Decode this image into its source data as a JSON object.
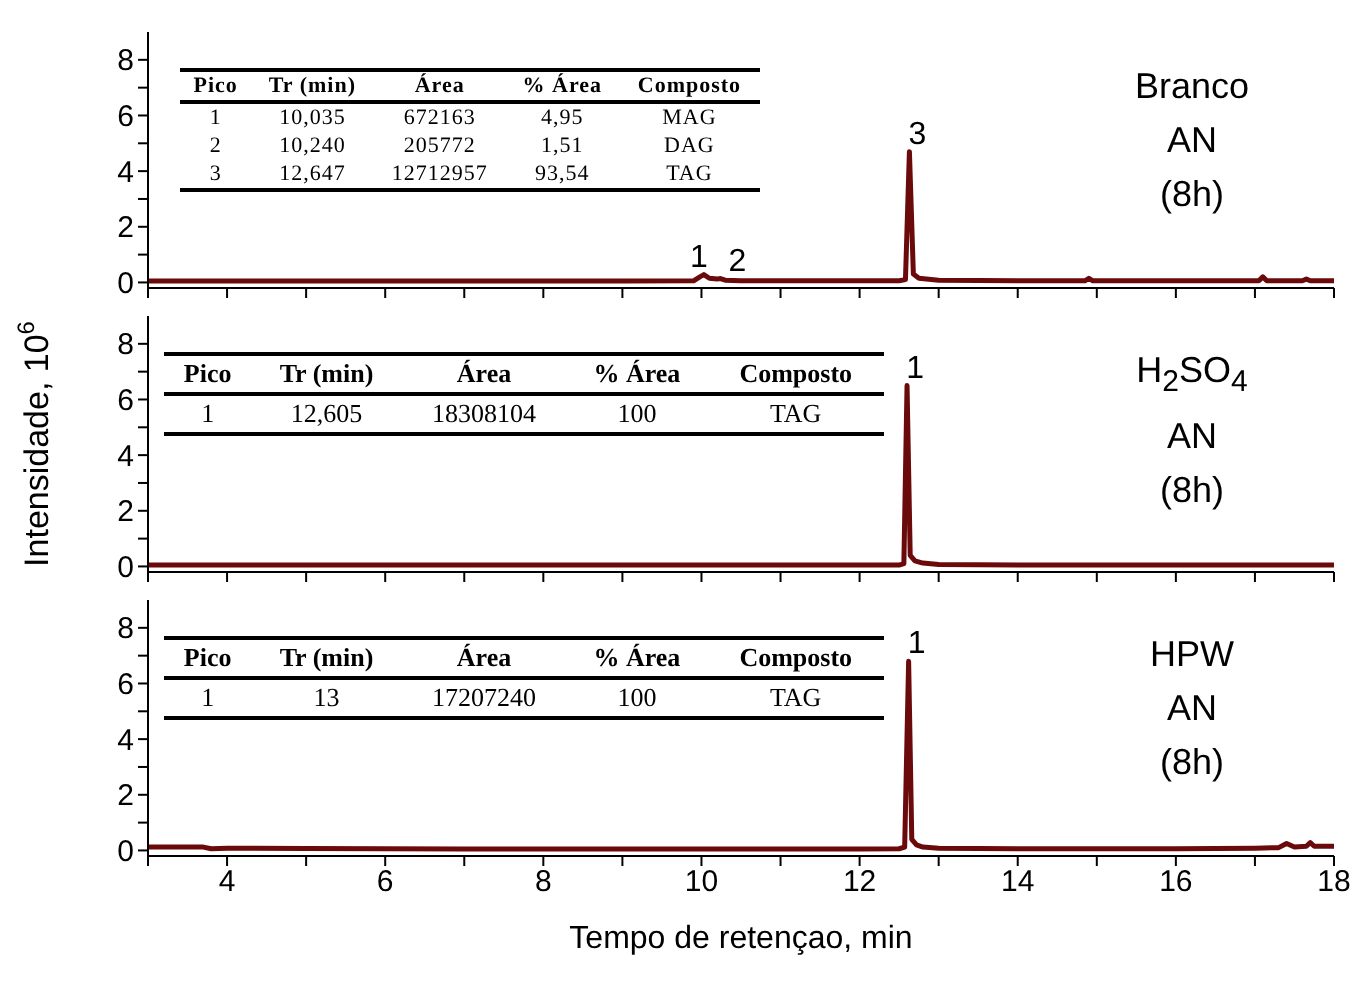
{
  "chart_data": [
    {
      "type": "line",
      "title": "Branco AN (8h)",
      "x": [
        3,
        4,
        5,
        6,
        7,
        8,
        9,
        9.9,
        9.98,
        10.03,
        10.1,
        10.2,
        10.24,
        10.3,
        10.5,
        11,
        12,
        12.5,
        12.58,
        12.63,
        12.68,
        12.75,
        13,
        14,
        14.85,
        14.9,
        14.95,
        16,
        17.05,
        17.1,
        17.15,
        17.6,
        17.65,
        17.7,
        18
      ],
      "series": [
        {
          "color": "#6b0a0a",
          "values": [
            0.05,
            0.05,
            0.05,
            0.05,
            0.05,
            0.05,
            0.05,
            0.06,
            0.2,
            0.28,
            0.15,
            0.12,
            0.14,
            0.08,
            0.06,
            0.06,
            0.06,
            0.06,
            0.1,
            4.7,
            0.3,
            0.15,
            0.08,
            0.06,
            0.06,
            0.15,
            0.06,
            0.06,
            0.06,
            0.2,
            0.06,
            0.06,
            0.12,
            0.06,
            0.06
          ]
        }
      ],
      "xlim": [
        3,
        18
      ],
      "xticks": [
        {
          "value": 3,
          "label": null
        },
        4,
        {
          "value": 5,
          "label": null
        },
        6,
        {
          "value": 7,
          "label": null
        },
        8,
        {
          "value": 9,
          "label": null
        },
        10,
        {
          "value": 11,
          "label": null
        },
        12,
        {
          "value": 13,
          "label": null
        },
        14,
        {
          "value": 15,
          "label": null
        },
        16,
        {
          "value": 17,
          "label": null
        },
        18
      ],
      "ylim": [
        -0.2,
        9
      ],
      "yticks": [
        0,
        {
          "value": 1,
          "label": null
        },
        2,
        {
          "value": 3,
          "label": null
        },
        4,
        {
          "value": 5,
          "label": null
        },
        6,
        {
          "value": 7,
          "label": null
        },
        8
      ],
      "tick_labels": "y",
      "annotations": [
        "Pico",
        "Tr (min)",
        "Área",
        "% Área",
        "Composto",
        "1",
        "10,035",
        "672163",
        "4,95",
        "MAG",
        "2",
        "10,240",
        "205772",
        "1,51",
        "DAG",
        "3",
        "12,647",
        "12712957",
        "93,54",
        "TAG",
        {
          "text": "1",
          "x": 10.03,
          "y": 0.28
        },
        {
          "text": "2",
          "x": 10.24,
          "y": 0.14
        },
        {
          "text": "3",
          "x": 12.63,
          "y": 4.7
        }
      ]
    },
    {
      "type": "line",
      "title": "H$_{2}$SO$_{4}$ AN (8h)",
      "ylabel": "Intensidade, 10$^{6}$",
      "x": [
        3,
        4,
        5,
        6,
        7,
        8,
        9,
        10,
        11,
        12,
        12.5,
        12.56,
        12.6,
        12.64,
        12.7,
        12.8,
        13,
        14,
        15,
        16,
        17,
        18
      ],
      "series": [
        {
          "color": "#6b0a0a",
          "values": [
            0.05,
            0.05,
            0.05,
            0.05,
            0.05,
            0.05,
            0.05,
            0.05,
            0.05,
            0.05,
            0.05,
            0.1,
            6.5,
            0.4,
            0.2,
            0.12,
            0.07,
            0.05,
            0.05,
            0.05,
            0.05,
            0.05
          ]
        }
      ],
      "xlim": [
        3,
        18
      ],
      "xticks": [
        {
          "value": 3,
          "label": null
        },
        4,
        {
          "value": 5,
          "label": null
        },
        6,
        {
          "value": 7,
          "label": null
        },
        8,
        {
          "value": 9,
          "label": null
        },
        10,
        {
          "value": 11,
          "label": null
        },
        12,
        {
          "value": 13,
          "label": null
        },
        14,
        {
          "value": 15,
          "label": null
        },
        16,
        {
          "value": 17,
          "label": null
        },
        18
      ],
      "ylim": [
        -0.2,
        9
      ],
      "yticks": [
        0,
        {
          "value": 1,
          "label": null
        },
        2,
        {
          "value": 3,
          "label": null
        },
        4,
        {
          "value": 5,
          "label": null
        },
        6,
        {
          "value": 7,
          "label": null
        },
        8
      ],
      "tick_labels": "y",
      "annotations": [
        "Pico",
        "Tr (min)",
        "Área",
        "% Área",
        "Composto",
        "1",
        "12,605",
        "18308104",
        "100",
        "TAG",
        {
          "text": "1",
          "x": 12.6,
          "y": 6.5
        }
      ]
    },
    {
      "type": "line",
      "title": "HPW AN (8h)",
      "xlabel": "Tempo de retençao, min",
      "x": [
        3,
        3.5,
        3.7,
        3.8,
        4,
        5,
        6,
        7,
        8,
        9,
        10,
        11,
        12,
        12.5,
        12.57,
        12.62,
        12.66,
        12.72,
        12.8,
        13,
        14,
        15,
        16,
        17,
        17.3,
        17.4,
        17.5,
        17.65,
        17.7,
        17.75,
        18
      ],
      "series": [
        {
          "color": "#6b0a0a",
          "values": [
            0.12,
            0.12,
            0.12,
            0.06,
            0.08,
            0.07,
            0.06,
            0.05,
            0.05,
            0.05,
            0.05,
            0.05,
            0.05,
            0.06,
            0.12,
            6.8,
            0.4,
            0.2,
            0.12,
            0.08,
            0.06,
            0.06,
            0.06,
            0.08,
            0.1,
            0.25,
            0.12,
            0.15,
            0.28,
            0.15,
            0.15
          ]
        }
      ],
      "xlim": [
        3,
        18
      ],
      "xticks": [
        {
          "value": 3,
          "label": null
        },
        4,
        {
          "value": 5,
          "label": null
        },
        6,
        {
          "value": 7,
          "label": null
        },
        8,
        {
          "value": 9,
          "label": null
        },
        10,
        {
          "value": 11,
          "label": null
        },
        12,
        {
          "value": 13,
          "label": null
        },
        14,
        {
          "value": 15,
          "label": null
        },
        16,
        {
          "value": 17,
          "label": null
        },
        18
      ],
      "ylim": [
        -0.2,
        9
      ],
      "yticks": [
        0,
        {
          "value": 1,
          "label": null
        },
        2,
        {
          "value": 3,
          "label": null
        },
        4,
        {
          "value": 5,
          "label": null
        },
        6,
        {
          "value": 7,
          "label": null
        },
        8
      ],
      "annotations": [
        "Pico",
        "Tr (min)",
        "Área",
        "% Área",
        "Composto",
        "1",
        "13",
        "17207240",
        "100",
        "TAG",
        {
          "text": "1",
          "x": 12.62,
          "y": 6.8
        }
      ]
    }
  ]
}
